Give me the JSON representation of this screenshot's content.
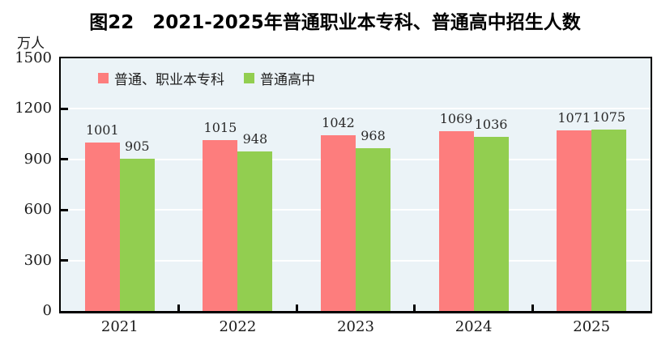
{
  "title": "图22　2021-2025年普通职业本专科、普通高中招生人数",
  "unit_label": "万人",
  "colors": {
    "series1": "#FD7D7D",
    "series2": "#92CE50",
    "plot_background": "#EBF3F7",
    "gridline": "#FFFFFF",
    "axis": "#000000"
  },
  "legend": {
    "items": [
      {
        "label": "普通、职业本专科",
        "color": "#FD7D7D"
      },
      {
        "label": "普通高中",
        "color": "#92CE50"
      }
    ]
  },
  "chart_data": {
    "type": "bar",
    "title": "图22　2021-2025年普通职业本专科、普通高中招生人数",
    "ylabel": "万人",
    "categories": [
      "2021",
      "2022",
      "2023",
      "2024",
      "2025"
    ],
    "series": [
      {
        "name": "普通、职业本专科",
        "color": "#FD7D7D",
        "values": [
          1001,
          1015,
          1042,
          1069,
          1071
        ]
      },
      {
        "name": "普通高中",
        "color": "#92CE50",
        "values": [
          905,
          948,
          968,
          1036,
          1075
        ]
      }
    ],
    "ylim": [
      0,
      1500
    ],
    "yticks": [
      0,
      300,
      600,
      900,
      1200,
      1500
    ],
    "grid": true,
    "legend_position": "top-left-inside"
  }
}
